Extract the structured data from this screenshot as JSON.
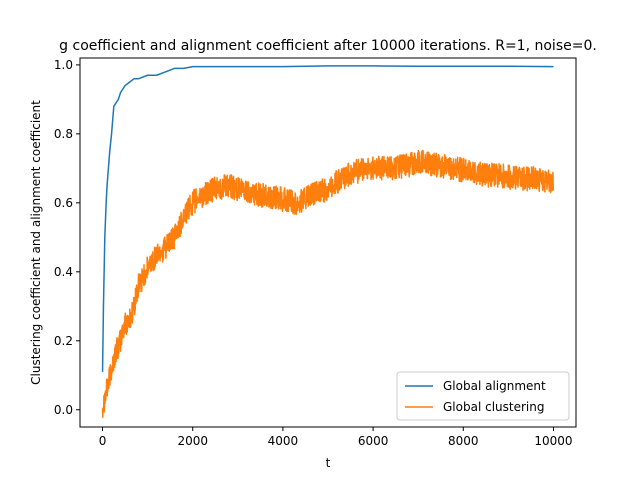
{
  "chart_data": {
    "type": "line",
    "title": "g coefficient and alignment coefficient after 10000 iterations. R=1, noise=0.",
    "xlabel": "t",
    "ylabel": "Clustering coefficient and alignment coefficient",
    "xlim": [
      -500,
      10500
    ],
    "ylim": [
      -0.05,
      1.02
    ],
    "xticks": [
      0,
      2000,
      4000,
      6000,
      8000,
      10000
    ],
    "yticks": [
      0.0,
      0.2,
      0.4,
      0.6,
      0.8,
      1.0
    ],
    "xtick_labels": [
      "0",
      "2000",
      "4000",
      "6000",
      "8000",
      "10000"
    ],
    "ytick_labels": [
      "0.0",
      "0.2",
      "0.4",
      "0.6",
      "0.8",
      "1.0"
    ],
    "grid": false,
    "legend_position": "lower-right",
    "series": [
      {
        "name": "Global alignment",
        "color": "#1f77b4",
        "x": [
          0,
          20,
          50,
          80,
          100,
          130,
          160,
          200,
          250,
          300,
          350,
          400,
          500,
          600,
          700,
          800,
          1000,
          1200,
          1400,
          1600,
          1800,
          2000,
          2500,
          3000,
          4000,
          5000,
          6000,
          7000,
          8000,
          9000,
          10000
        ],
        "y": [
          0.11,
          0.3,
          0.5,
          0.6,
          0.65,
          0.7,
          0.75,
          0.8,
          0.88,
          0.89,
          0.9,
          0.92,
          0.94,
          0.95,
          0.96,
          0.96,
          0.97,
          0.97,
          0.98,
          0.99,
          0.99,
          0.995,
          0.995,
          0.995,
          0.995,
          0.997,
          0.997,
          0.996,
          0.996,
          0.996,
          0.995
        ]
      },
      {
        "name": "Global clustering",
        "color": "#ff7f0e",
        "x": [
          0,
          100,
          200,
          300,
          400,
          500,
          600,
          700,
          800,
          1000,
          1200,
          1400,
          1600,
          1800,
          2000,
          2200,
          2500,
          2800,
          3000,
          3300,
          3600,
          4000,
          4300,
          4600,
          5000,
          5300,
          5600,
          6000,
          6400,
          6800,
          7000,
          7400,
          7800,
          8200,
          8500,
          8800,
          9200,
          9600,
          10000
        ],
        "y": [
          0.01,
          0.06,
          0.12,
          0.17,
          0.2,
          0.25,
          0.26,
          0.3,
          0.36,
          0.41,
          0.45,
          0.47,
          0.5,
          0.56,
          0.6,
          0.62,
          0.64,
          0.65,
          0.64,
          0.63,
          0.62,
          0.61,
          0.6,
          0.62,
          0.64,
          0.67,
          0.69,
          0.7,
          0.7,
          0.71,
          0.72,
          0.71,
          0.7,
          0.69,
          0.68,
          0.68,
          0.67,
          0.67,
          0.66
        ]
      }
    ]
  }
}
